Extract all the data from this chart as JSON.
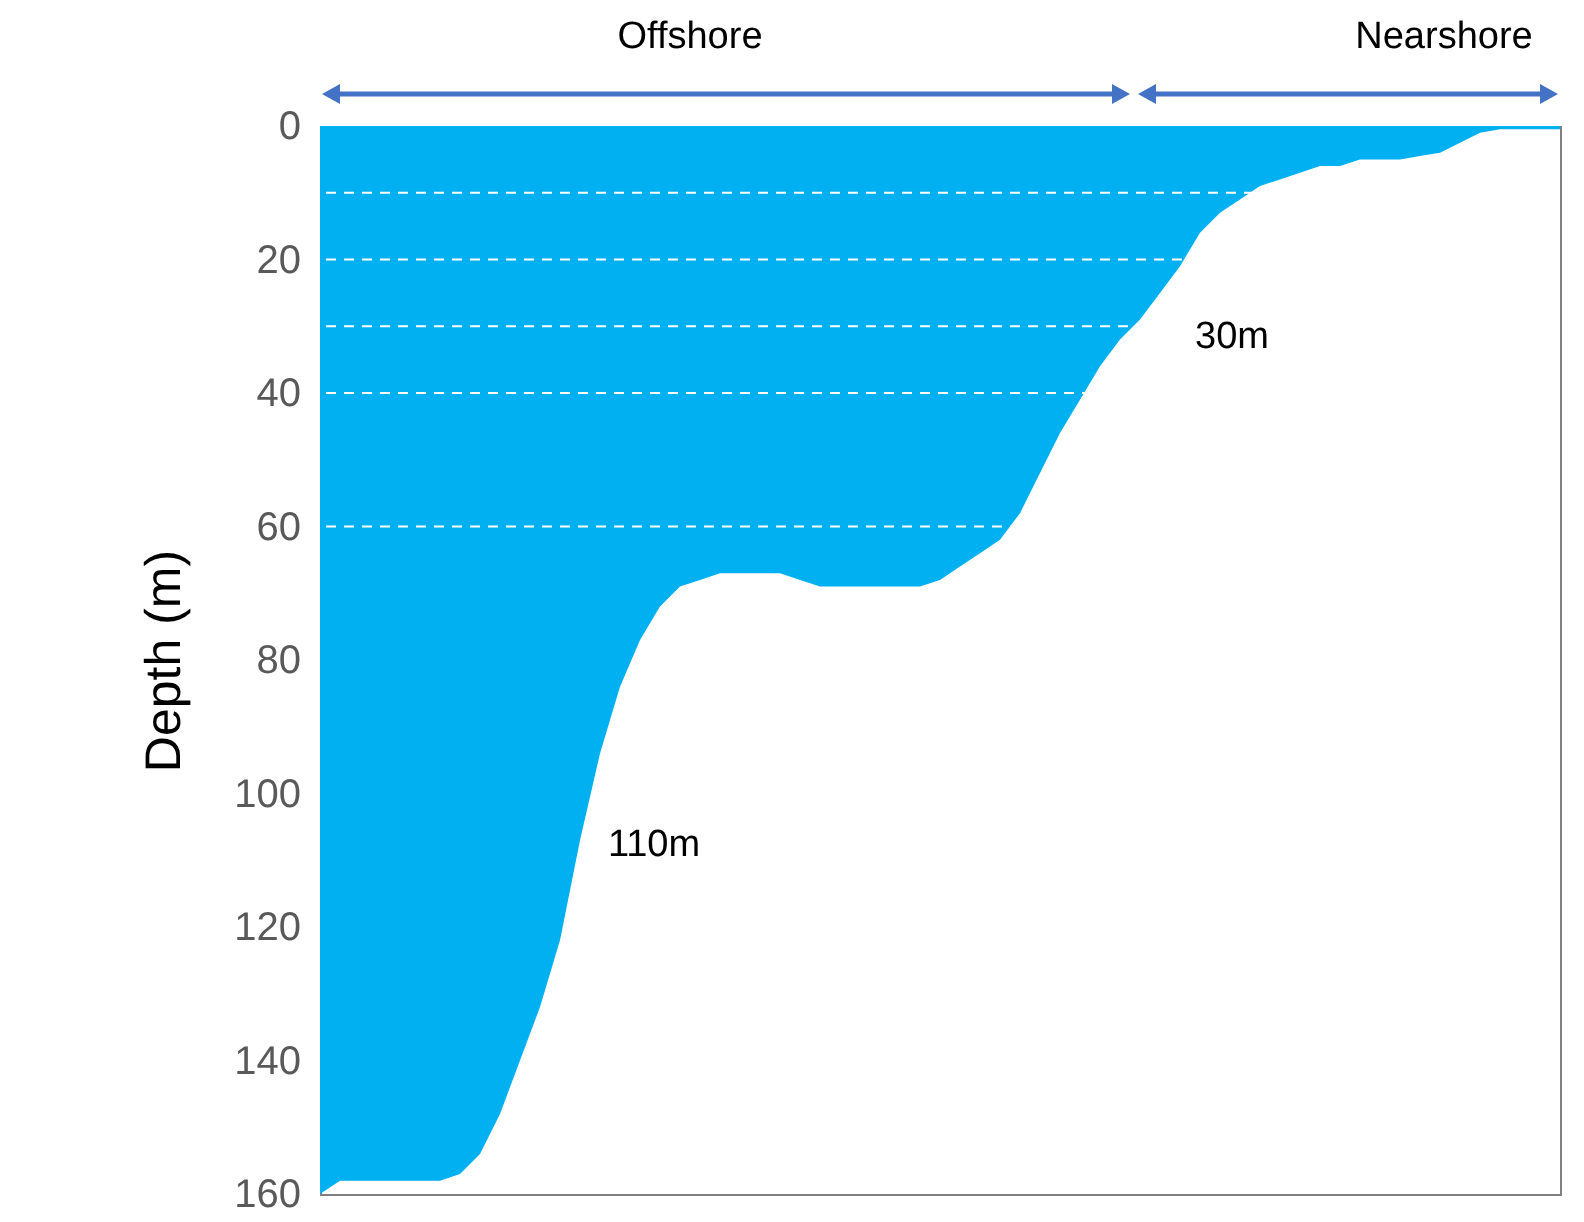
{
  "chart_data": {
    "type": "area",
    "ylabel": "Depth (m)",
    "categories": [
      null,
      null,
      null,
      null,
      null,
      null,
      null,
      null,
      null,
      null,
      null,
      null,
      null,
      null,
      null,
      null,
      null,
      null,
      null,
      null,
      null,
      null,
      null,
      null,
      null,
      null,
      null,
      null,
      null,
      null,
      null,
      null,
      null,
      null,
      null,
      null,
      null,
      null,
      null,
      null,
      null,
      null,
      null,
      null,
      null,
      null,
      null,
      null,
      null,
      null,
      null,
      null,
      null,
      null,
      null,
      null,
      null,
      null,
      null,
      null,
      null,
      null,
      null
    ],
    "series": [
      {
        "color": "#00b0f0",
        "values": [
          160,
          158,
          158,
          158,
          158,
          158,
          158,
          157,
          154,
          148,
          140,
          132,
          122,
          107,
          94,
          84,
          77,
          72,
          69,
          68,
          67,
          67,
          67,
          67,
          68,
          69,
          69,
          69,
          69,
          69,
          69,
          68,
          66,
          64,
          62,
          58,
          52,
          46,
          41,
          36,
          32,
          29,
          25,
          21,
          16,
          13,
          11,
          9,
          8,
          7,
          6,
          6,
          5,
          5,
          5,
          4.5,
          4,
          2.5,
          1,
          0.5,
          0.5,
          0.5,
          0.5
        ]
      }
    ],
    "ylim": [
      160,
      0
    ],
    "yticks": [
      0,
      20,
      40,
      60,
      80,
      100,
      120,
      140,
      160
    ],
    "ref_lines": [
      {
        "axis": "y",
        "value": 10,
        "color": "#ffffff",
        "line_style": "dashed"
      },
      {
        "axis": "y",
        "value": 20,
        "color": "#ffffff",
        "line_style": "dashed"
      },
      {
        "axis": "y",
        "value": 30,
        "color": "#ffffff",
        "line_style": "dashed"
      },
      {
        "axis": "y",
        "value": 40,
        "color": "#ffffff",
        "line_style": "dashed"
      },
      {
        "axis": "y",
        "value": 60,
        "color": "#ffffff",
        "line_style": "dashed"
      }
    ],
    "annotations": [
      "Offshore",
      "Nearshore",
      "30m",
      "110m"
    ]
  }
}
